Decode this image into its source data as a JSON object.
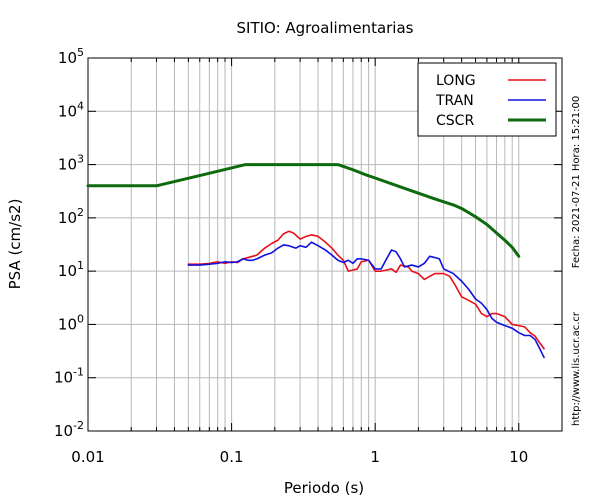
{
  "chart_data": {
    "type": "line",
    "title": "SITIO: Agroalimentarias",
    "xlabel": "Periodo (s)",
    "ylabel": "PSA (cm/s2)",
    "x_scale": "log",
    "y_scale": "log",
    "xlim": [
      0.01,
      20
    ],
    "ylim": [
      0.01,
      100000
    ],
    "grid": true,
    "legend_position": "top-right",
    "x_tick_labels": [
      {
        "value": 0.01,
        "label": "0.01"
      },
      {
        "value": 0.1,
        "label": "0.1"
      },
      {
        "value": 1,
        "label": "1"
      },
      {
        "value": 10,
        "label": "10"
      }
    ],
    "y_tick_labels": [
      {
        "value": 0.01,
        "base": "10",
        "exp": "-2"
      },
      {
        "value": 0.1,
        "base": "10",
        "exp": "-1"
      },
      {
        "value": 1,
        "base": "10",
        "exp": "0"
      },
      {
        "value": 10,
        "base": "10",
        "exp": "1"
      },
      {
        "value": 100,
        "base": "10",
        "exp": "2"
      },
      {
        "value": 1000,
        "base": "10",
        "exp": "3"
      },
      {
        "value": 10000,
        "base": "10",
        "exp": "4"
      },
      {
        "value": 100000,
        "base": "10",
        "exp": "5"
      }
    ],
    "series": [
      {
        "name": "LONG",
        "color": "#e8101a",
        "width": 1.6,
        "points": [
          [
            0.05,
            13.5
          ],
          [
            0.06,
            13.5
          ],
          [
            0.07,
            14
          ],
          [
            0.08,
            15
          ],
          [
            0.09,
            14
          ],
          [
            0.1,
            15
          ],
          [
            0.11,
            14.5
          ],
          [
            0.12,
            17
          ],
          [
            0.13,
            18
          ],
          [
            0.15,
            20
          ],
          [
            0.17,
            27
          ],
          [
            0.19,
            33
          ],
          [
            0.21,
            38
          ],
          [
            0.23,
            50
          ],
          [
            0.25,
            56
          ],
          [
            0.27,
            52
          ],
          [
            0.3,
            40
          ],
          [
            0.33,
            45
          ],
          [
            0.36,
            48
          ],
          [
            0.4,
            45
          ],
          [
            0.45,
            35
          ],
          [
            0.5,
            27
          ],
          [
            0.55,
            20
          ],
          [
            0.6,
            16
          ],
          [
            0.65,
            10
          ],
          [
            0.7,
            10.5
          ],
          [
            0.75,
            11
          ],
          [
            0.8,
            15
          ],
          [
            0.9,
            16
          ],
          [
            1,
            10
          ],
          [
            1.1,
            10
          ],
          [
            1.2,
            10.5
          ],
          [
            1.3,
            11
          ],
          [
            1.4,
            9.5
          ],
          [
            1.5,
            13
          ],
          [
            1.7,
            12
          ],
          [
            1.8,
            10
          ],
          [
            2,
            9
          ],
          [
            2.2,
            7
          ],
          [
            2.4,
            8
          ],
          [
            2.6,
            9
          ],
          [
            3,
            9
          ],
          [
            3.3,
            8
          ],
          [
            3.6,
            5.5
          ],
          [
            4,
            3.3
          ],
          [
            4.5,
            2.8
          ],
          [
            5,
            2.4
          ],
          [
            5.5,
            1.6
          ],
          [
            6,
            1.4
          ],
          [
            6.5,
            1.6
          ],
          [
            7,
            1.6
          ],
          [
            8,
            1.4
          ],
          [
            9,
            1.0
          ],
          [
            10,
            0.95
          ],
          [
            11,
            0.9
          ],
          [
            12,
            0.7
          ],
          [
            13,
            0.6
          ],
          [
            14,
            0.45
          ],
          [
            15,
            0.35
          ]
        ]
      },
      {
        "name": "TRAN",
        "color": "#1010e0",
        "width": 1.6,
        "points": [
          [
            0.05,
            13
          ],
          [
            0.06,
            13
          ],
          [
            0.07,
            13.5
          ],
          [
            0.08,
            14
          ],
          [
            0.09,
            15
          ],
          [
            0.1,
            14.5
          ],
          [
            0.11,
            15
          ],
          [
            0.12,
            17
          ],
          [
            0.13,
            16
          ],
          [
            0.14,
            16
          ],
          [
            0.15,
            17
          ],
          [
            0.17,
            20
          ],
          [
            0.19,
            22
          ],
          [
            0.21,
            27
          ],
          [
            0.23,
            31
          ],
          [
            0.25,
            30
          ],
          [
            0.28,
            27
          ],
          [
            0.3,
            30
          ],
          [
            0.33,
            28
          ],
          [
            0.36,
            35
          ],
          [
            0.4,
            30
          ],
          [
            0.45,
            25
          ],
          [
            0.5,
            20
          ],
          [
            0.55,
            16
          ],
          [
            0.6,
            14.5
          ],
          [
            0.65,
            16
          ],
          [
            0.7,
            14
          ],
          [
            0.75,
            17
          ],
          [
            0.8,
            17
          ],
          [
            0.9,
            16
          ],
          [
            1,
            11
          ],
          [
            1.1,
            11
          ],
          [
            1.2,
            17
          ],
          [
            1.3,
            25
          ],
          [
            1.4,
            23
          ],
          [
            1.5,
            17
          ],
          [
            1.6,
            12
          ],
          [
            1.8,
            13
          ],
          [
            2,
            12
          ],
          [
            2.2,
            14
          ],
          [
            2.4,
            19
          ],
          [
            2.6,
            18
          ],
          [
            2.8,
            17
          ],
          [
            3,
            11
          ],
          [
            3.5,
            9
          ],
          [
            4,
            6.5
          ],
          [
            4.5,
            4.5
          ],
          [
            5,
            3
          ],
          [
            5.5,
            2.5
          ],
          [
            6,
            1.9
          ],
          [
            6.5,
            1.3
          ],
          [
            7,
            1.1
          ],
          [
            8,
            0.95
          ],
          [
            9,
            0.85
          ],
          [
            10,
            0.7
          ],
          [
            11,
            0.62
          ],
          [
            12,
            0.62
          ],
          [
            13,
            0.52
          ],
          [
            14,
            0.35
          ],
          [
            15,
            0.24
          ]
        ]
      },
      {
        "name": "CSCR",
        "color": "#0e6a0e",
        "width": 3,
        "points": [
          [
            0.01,
            400
          ],
          [
            0.03,
            400
          ],
          [
            0.0625,
            640
          ],
          [
            0.125,
            1000
          ],
          [
            0.55,
            1000
          ],
          [
            0.7,
            800
          ],
          [
            0.85,
            650
          ],
          [
            1.0,
            560
          ],
          [
            1.5,
            380
          ],
          [
            2.0,
            290
          ],
          [
            2.5,
            235
          ],
          [
            3.0,
            200
          ],
          [
            3.5,
            175
          ],
          [
            4.0,
            150
          ],
          [
            5.0,
            105
          ],
          [
            6.0,
            75
          ],
          [
            7.0,
            52
          ],
          [
            8.0,
            38
          ],
          [
            9.0,
            28
          ],
          [
            10.0,
            19
          ]
        ]
      }
    ]
  },
  "side_text": {
    "date_time": "Fecha: 2021-07-21 Hora: 15:21:00",
    "url": "http://www.lis.ucr.ac.cr"
  }
}
